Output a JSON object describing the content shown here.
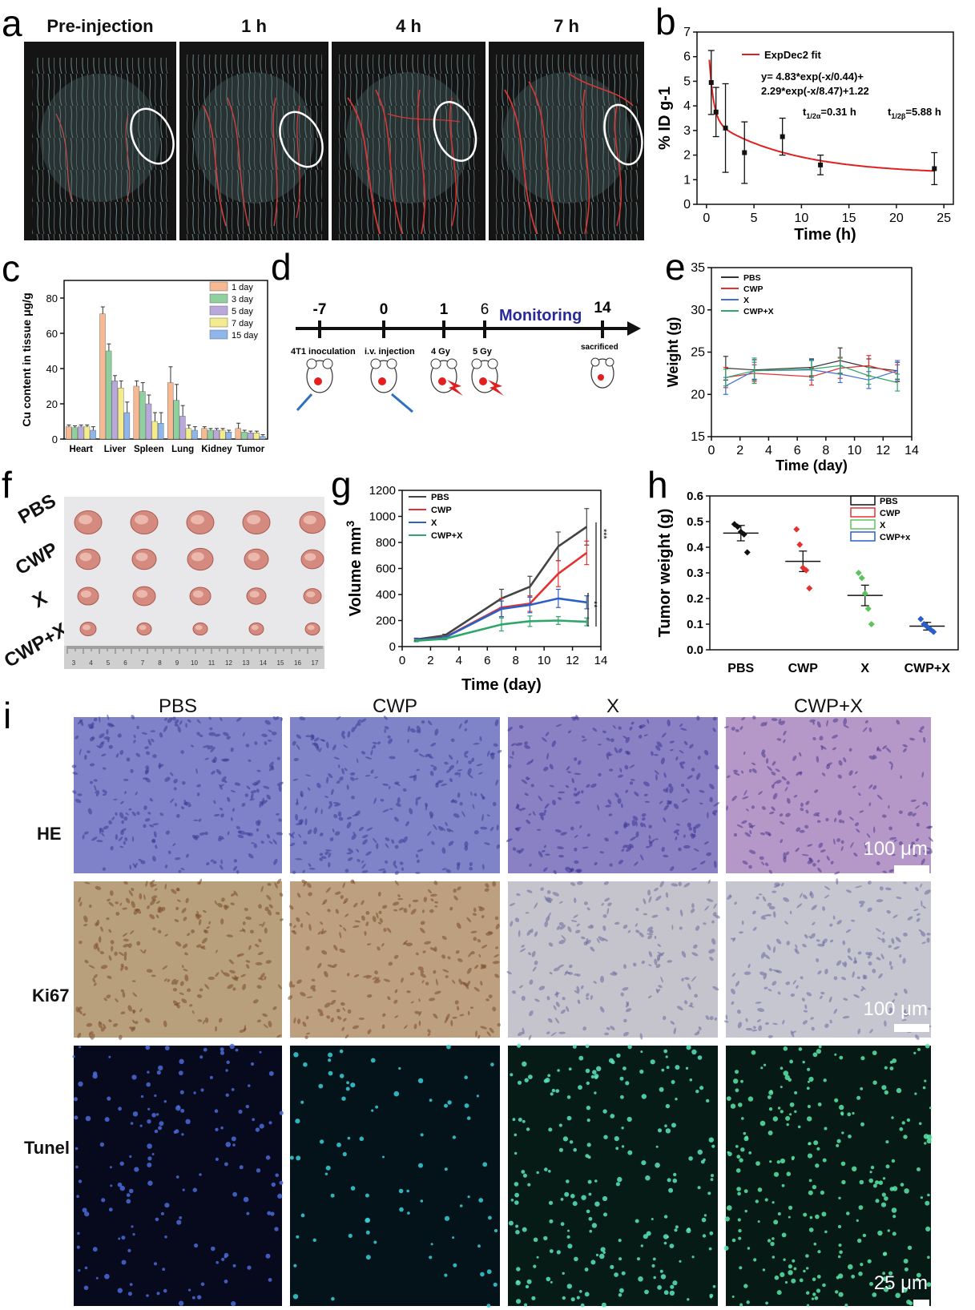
{
  "panel_labels": [
    "a",
    "b",
    "c",
    "d",
    "e",
    "f",
    "g",
    "h",
    "i"
  ],
  "panel_a": {
    "titles": [
      "Pre-injection",
      "1 h",
      "4 h",
      "7 h"
    ]
  },
  "panel_b": {
    "legend": "ExpDec2 fit",
    "equation_line1": "y= 4.83*exp(-x/0.44)+",
    "equation_line2": "2.29*exp(-x/8.47)+1.22",
    "t_alpha_main": "t",
    "t_alpha_sub": "1/2α",
    "t_alpha_val": "=0.31 h",
    "t_beta_main": "t",
    "t_beta_sub": "1/2β",
    "t_beta_val": "=5.88 h",
    "colors": {
      "fit": "#e02020"
    }
  },
  "panel_d": {
    "ticks": [
      "-7",
      "0",
      "1",
      "6",
      "14"
    ],
    "monitoring": "Monitoring",
    "events": [
      "4T1 inoculation",
      "i.v. injection",
      "4 Gy",
      "5 Gy",
      "sacrificed"
    ]
  },
  "panel_f": {
    "rows": [
      "PBS",
      "CWP",
      "X",
      "CWP+X"
    ],
    "ruler_numbers": [
      "3",
      "4",
      "5",
      "6",
      "7",
      "8",
      "9",
      "10",
      "11",
      "12",
      "13",
      "14",
      "15",
      "16",
      "17"
    ]
  },
  "panel_i": {
    "columns": [
      "PBS",
      "CWP",
      "X",
      "CWP+X"
    ],
    "rows": [
      "HE",
      "Ki67",
      "Tunel"
    ],
    "scale_he": "100 μm",
    "scale_ki67": "100 μm",
    "scale_tunel": "25 μm"
  },
  "chart_data": [
    {
      "id": "b",
      "type": "scatter",
      "xlabel": "Time (h)",
      "ylabel": "% ID g-1",
      "xlim": [
        -1,
        26
      ],
      "ylim": [
        0,
        7
      ],
      "xticks": [
        0,
        5,
        10,
        15,
        20,
        25
      ],
      "yticks": [
        0,
        1,
        2,
        3,
        4,
        5,
        6,
        7
      ],
      "series": [
        {
          "x": [
            0.5,
            1,
            2,
            4,
            8,
            12,
            24
          ],
          "y": [
            4.95,
            3.75,
            3.1,
            2.1,
            2.75,
            1.6,
            1.45
          ],
          "err": [
            1.3,
            1.0,
            1.8,
            1.25,
            0.75,
            0.4,
            0.65
          ]
        }
      ],
      "fit": {
        "a1": 4.83,
        "t1": 0.44,
        "a2": 2.29,
        "t2": 8.47,
        "y0": 1.22
      }
    },
    {
      "id": "c",
      "type": "bar",
      "ylabel": "Cu content in tissue μg/g",
      "categories": [
        "Heart",
        "Liver",
        "Spleen",
        "Lung",
        "Kidney",
        "Tumor"
      ],
      "ylim": [
        0,
        90
      ],
      "yticks": [
        0,
        20,
        40,
        60,
        80
      ],
      "series": [
        {
          "name": "1 day",
          "color": "#f6b992",
          "values": [
            7,
            71,
            30,
            32,
            6,
            6
          ],
          "err": [
            1,
            4,
            3,
            9,
            1,
            3
          ]
        },
        {
          "name": "3 day",
          "color": "#8fd19e",
          "values": [
            6.5,
            50,
            27,
            22,
            5,
            4
          ],
          "err": [
            1,
            4,
            5,
            9,
            1,
            1
          ]
        },
        {
          "name": "5 day",
          "color": "#b9a8dc",
          "values": [
            7,
            33,
            20,
            13,
            5,
            3.5
          ],
          "err": [
            1,
            3,
            5,
            6,
            1,
            1
          ]
        },
        {
          "name": "7 day",
          "color": "#f3ec8c",
          "values": [
            7,
            29,
            10,
            6,
            5,
            3.5
          ],
          "err": [
            1,
            4,
            5,
            2,
            1,
            1
          ]
        },
        {
          "name": "15 day",
          "color": "#8fb6ea",
          "values": [
            5,
            15,
            9,
            5,
            4,
            1.5
          ],
          "err": [
            2,
            6,
            6,
            2,
            1,
            1
          ]
        }
      ]
    },
    {
      "id": "e",
      "type": "line",
      "xlabel": "Time (day)",
      "ylabel": "Weight (g)",
      "xlim": [
        0,
        14
      ],
      "ylim": [
        15,
        35
      ],
      "xticks": [
        0,
        2,
        4,
        6,
        8,
        10,
        12,
        14
      ],
      "yticks": [
        15,
        20,
        25,
        30,
        35
      ],
      "x": [
        1,
        3,
        7,
        9,
        11,
        13
      ],
      "series": [
        {
          "name": "PBS",
          "color": "#333333",
          "values": [
            23.1,
            22.9,
            23.2,
            24.0,
            23.2,
            22.8
          ],
          "err": [
            1.4,
            1.2,
            1.0,
            1.5,
            1.0,
            1.0
          ]
        },
        {
          "name": "CWP",
          "color": "#e53030",
          "values": [
            22.0,
            22.5,
            22.1,
            23.1,
            23.4,
            22.5
          ],
          "err": [
            1.2,
            1.0,
            1.0,
            1.2,
            1.2,
            1.0
          ]
        },
        {
          "name": "X",
          "color": "#3c6fd8",
          "values": [
            21.0,
            22.8,
            22.9,
            22.4,
            21.7,
            22.8
          ],
          "err": [
            1.0,
            1.0,
            1.2,
            1.0,
            1.0,
            1.2
          ]
        },
        {
          "name": "CWP+X",
          "color": "#2fa66a",
          "values": [
            22.0,
            22.8,
            23.0,
            23.4,
            22.2,
            21.4
          ],
          "err": [
            1.0,
            1.5,
            1.0,
            1.0,
            1.0,
            1.0
          ]
        }
      ]
    },
    {
      "id": "g",
      "type": "line",
      "xlabel": "Time (day)",
      "ylabel": "Volume mm",
      "ylabel_sup": "3",
      "xlim": [
        0,
        14
      ],
      "ylim": [
        0,
        1200
      ],
      "xticks": [
        0,
        2,
        4,
        6,
        8,
        10,
        12,
        14
      ],
      "yticks": [
        0,
        200,
        400,
        600,
        800,
        1000,
        1200
      ],
      "x": [
        1,
        3,
        7,
        9,
        11,
        13
      ],
      "series": [
        {
          "name": "PBS",
          "color": "#444444",
          "values": [
            55,
            85,
            370,
            460,
            770,
            920
          ],
          "err": [
            10,
            10,
            70,
            80,
            110,
            140
          ]
        },
        {
          "name": "CWP",
          "color": "#e53030",
          "values": [
            50,
            70,
            300,
            330,
            560,
            720
          ],
          "err": [
            10,
            10,
            70,
            60,
            100,
            90
          ]
        },
        {
          "name": "X",
          "color": "#2a5fc7",
          "values": [
            50,
            68,
            290,
            320,
            370,
            340
          ],
          "err": [
            10,
            10,
            60,
            60,
            70,
            50
          ]
        },
        {
          "name": "CWP+X",
          "color": "#2fa66a",
          "values": [
            45,
            60,
            170,
            195,
            200,
            190
          ],
          "err": [
            8,
            8,
            50,
            40,
            30,
            30
          ]
        }
      ],
      "sig": [
        "***",
        "**"
      ]
    },
    {
      "id": "h",
      "type": "scatter",
      "ylabel": "Tumor weight (g)",
      "categories": [
        "PBS",
        "CWP",
        "X",
        "CWP+X"
      ],
      "ylim": [
        0,
        0.6
      ],
      "yticks": [
        0.0,
        0.1,
        0.2,
        0.3,
        0.4,
        0.5,
        0.6
      ],
      "series": [
        {
          "name": "PBS",
          "color": "#111111",
          "mean": 0.455,
          "sem": 0.03,
          "points": [
            0.49,
            0.48,
            0.46,
            0.45,
            0.38
          ]
        },
        {
          "name": "CWP",
          "color": "#e53030",
          "mean": 0.345,
          "sem": 0.04,
          "points": [
            0.47,
            0.41,
            0.32,
            0.31,
            0.24
          ]
        },
        {
          "name": "X",
          "color": "#5cc45c",
          "mean": 0.212,
          "sem": 0.04,
          "points": [
            0.3,
            0.28,
            0.22,
            0.16,
            0.1
          ]
        },
        {
          "name": "CWP+x",
          "color": "#2a5fc7",
          "mean": 0.092,
          "sem": 0.015,
          "points": [
            0.12,
            0.1,
            0.09,
            0.08,
            0.07
          ]
        }
      ]
    }
  ]
}
